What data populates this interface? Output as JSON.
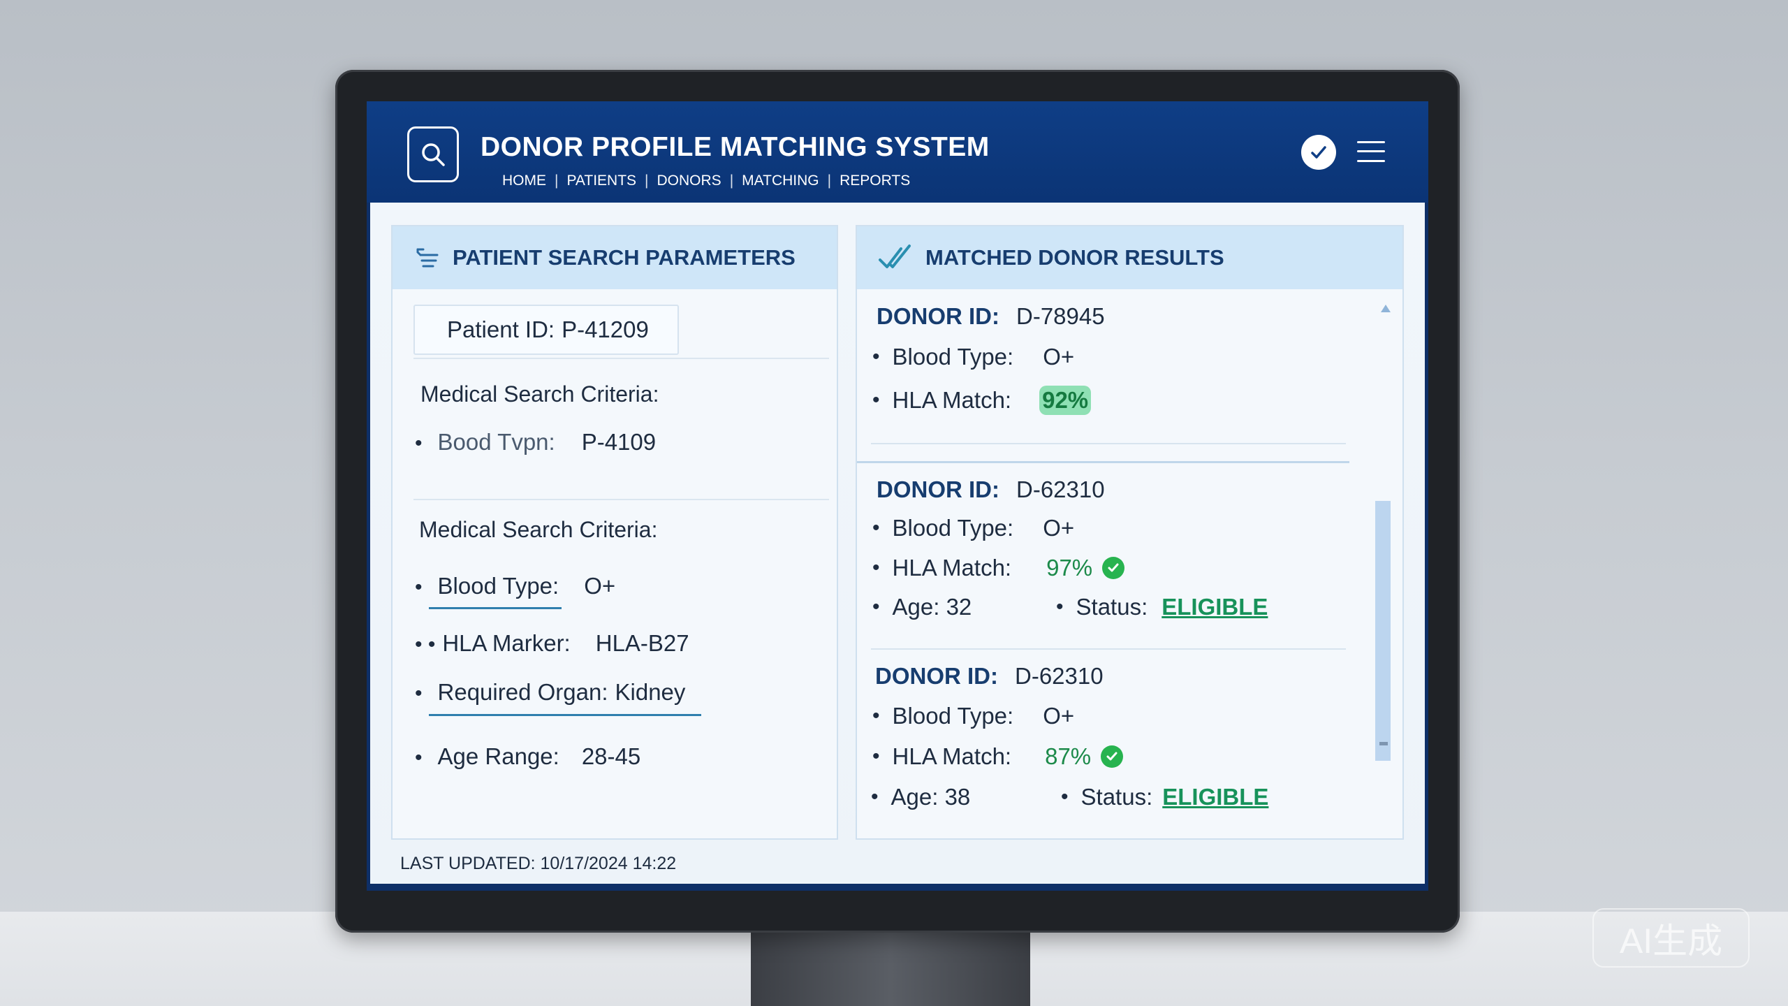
{
  "header": {
    "title": "DONOR PROFILE MATCHING SYSTEM",
    "nav": [
      "HOME",
      "PATIENTS",
      "DONORS",
      "MATCHING",
      "REPORTS"
    ],
    "nav_separator": "|"
  },
  "left_panel": {
    "title": "PATIENT SEARCH PARAMETERS",
    "patient_id_label": "Patient ID:",
    "patient_id_value": "P-41209",
    "section1_heading": "Medical Search Criteria:",
    "section1_items": [
      {
        "label": "Bood Tvpn:",
        "value": "P-4109"
      }
    ],
    "section2_heading": "Medical Search Criteria:",
    "section2_items": [
      {
        "bullet": "•",
        "label": "Blood Type:",
        "value": "O+"
      },
      {
        "bullet": "• •",
        "label": "HLA Marker:",
        "value": "HLA-B27"
      },
      {
        "bullet": "•",
        "label": "Required Organ:",
        "value": "Kidney"
      },
      {
        "bullet": "•",
        "label": "Age Range:",
        "value": "28-45"
      }
    ]
  },
  "right_panel": {
    "title": "MATCHED DONOR RESULTS",
    "donors": [
      {
        "id_label": "DONOR ID:",
        "id": "D-78945",
        "blood_label": "Blood Type:",
        "blood": "O+",
        "hla_label": "HLA Match:",
        "hla": "92%"
      },
      {
        "id_label": "DONOR ID:",
        "id": "D-62310",
        "blood_label": "Blood Type:",
        "blood": "O+",
        "hla_label": "HLA Match:",
        "hla": "97%",
        "age": "Age: 32",
        "status_label": "Status:",
        "status": "ELIGIBLE"
      },
      {
        "id_label": "DONOR ID:",
        "id": "D-62310",
        "blood_label": "Blood Type:",
        "blood": "O+",
        "hla_label": "HLA Match:",
        "hla": "87%",
        "age": "Age: 38",
        "status_label": "Status:",
        "status": "ELIGIBLE"
      }
    ]
  },
  "footer": {
    "last_updated": "LAST UPDATED: 10/17/2024 14:22"
  },
  "watermark": "AI生成",
  "colors": {
    "header_blue": "#0f3e86",
    "panel_header": "#cfe6f8",
    "title_text": "#173d6f",
    "eligible_green": "#17925a",
    "check_green": "#27b34f"
  },
  "icons": [
    "search-icon",
    "checkmark-icon",
    "menu-icon",
    "filter-list-icon",
    "double-check-icon",
    "check-circle-icon",
    "scroll-up-icon"
  ]
}
